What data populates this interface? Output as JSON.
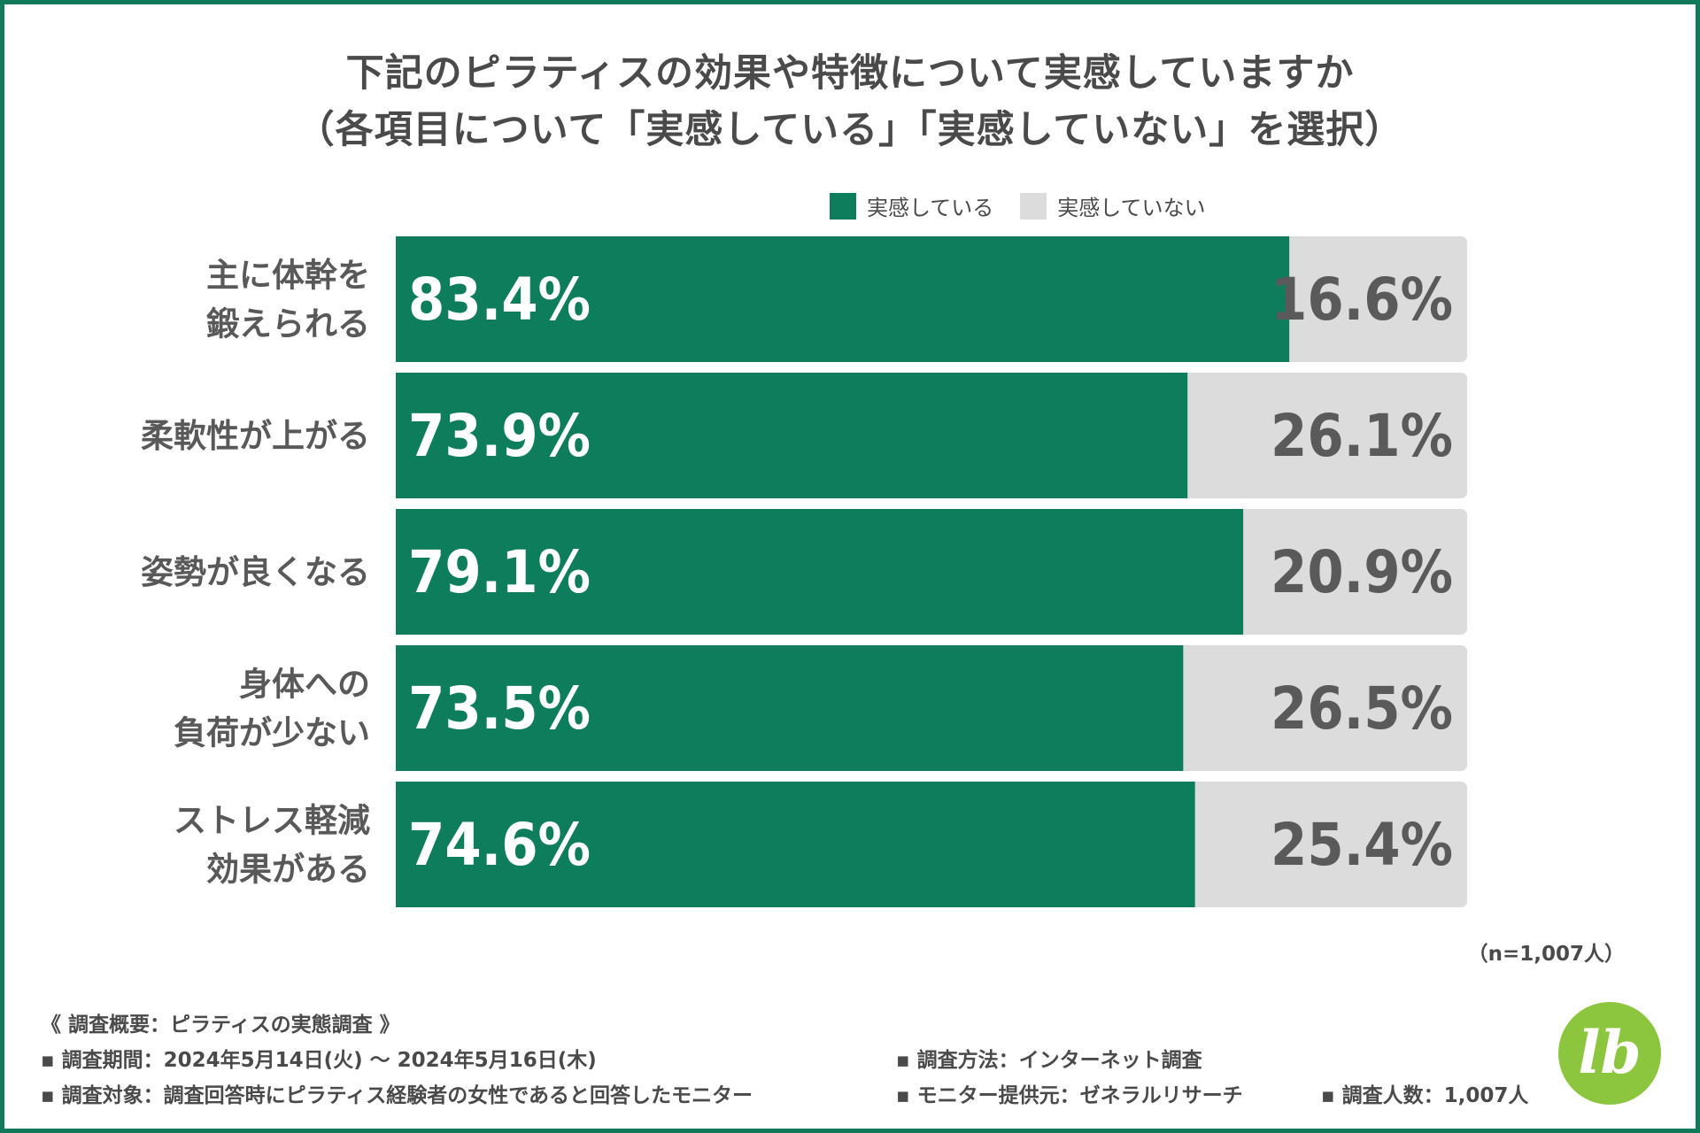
{
  "chart_data": {
    "type": "bar",
    "orientation": "horizontal",
    "stacked": true,
    "title": [
      "下記のピラティスの効果や特徴について実感していますか",
      "（各項目について「実感している」「実感していない」を選択）"
    ],
    "categories": [
      [
        "主に体幹を",
        "鍛えられる"
      ],
      [
        "柔軟性が上がる"
      ],
      [
        "姿勢が良くなる"
      ],
      [
        "身体への",
        "負荷が少ない"
      ],
      [
        "ストレス軽減",
        "効果がある"
      ]
    ],
    "series": [
      {
        "name": "実感している",
        "color": "#0e7d5c",
        "values": [
          83.4,
          73.9,
          79.1,
          73.5,
          74.6
        ],
        "labels": [
          "83.4%",
          "73.9%",
          "79.1%",
          "73.5%",
          "74.6%"
        ]
      },
      {
        "name": "実感していない",
        "color": "#dcdcdc",
        "values": [
          16.6,
          26.1,
          20.9,
          26.5,
          25.4
        ],
        "labels": [
          "16.6%",
          "26.1%",
          "20.9%",
          "26.5%",
          "25.4%"
        ]
      }
    ],
    "xlim": [
      0,
      100
    ],
    "grid": false,
    "legend": "top-center",
    "note": "（n=1,007人）"
  },
  "footer": {
    "heading": "《 調査概要：ピラティスの実態調査 》",
    "period": "調査期間：2024年5月14日(火) 〜 2024年5月16日(木)",
    "method": "調査方法：インターネット調査",
    "target": "調査対象：調査回答時にピラティス経験者の女性であると回答したモニター",
    "provider": "モニター提供元：ゼネラルリサーチ",
    "count": "調査人数：1,007人",
    "bullet": "▪"
  },
  "logo": {
    "text": "lb",
    "color": "#8cc63f"
  }
}
